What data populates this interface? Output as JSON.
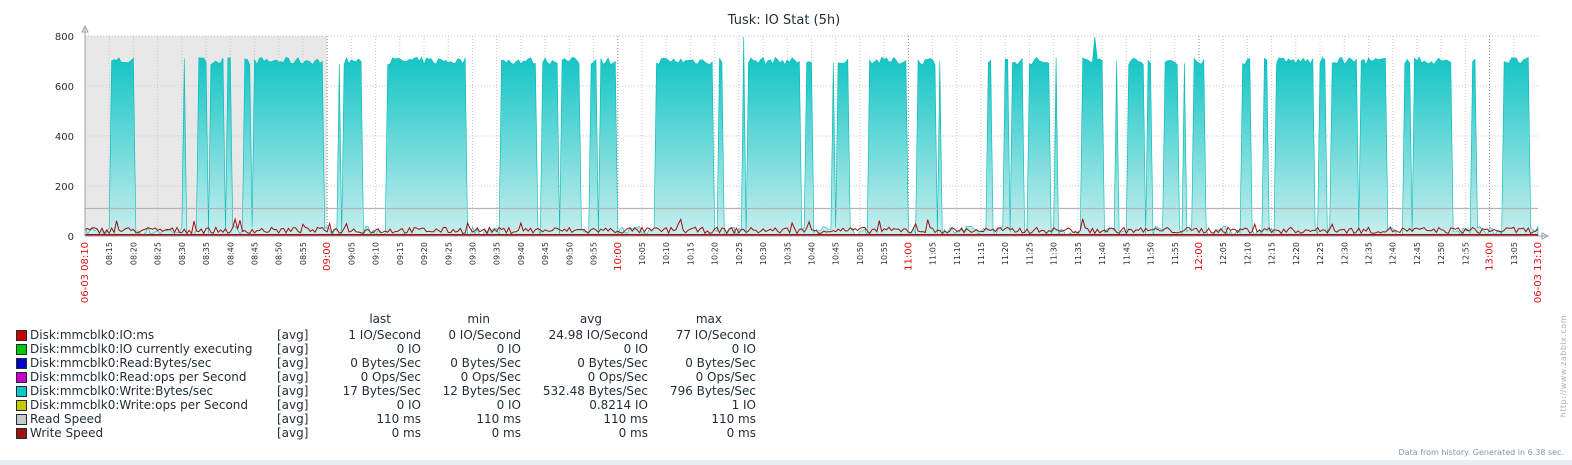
{
  "chart_data": {
    "type": "area",
    "title": "Tusk: IO Stat (5h)",
    "ylim": [
      0,
      800
    ],
    "yticks": [
      "0",
      "200",
      "400",
      "600",
      "800"
    ],
    "x_start_label": "06-03 08:10",
    "x_end_label": "06-03 13:10",
    "x_ticks": [
      "08:15",
      "08:20",
      "08:25",
      "08:30",
      "08:35",
      "08:40",
      "08:45",
      "08:50",
      "08:55",
      "09:00",
      "09:05",
      "09:10",
      "09:15",
      "09:20",
      "09:25",
      "09:30",
      "09:35",
      "09:40",
      "09:45",
      "09:50",
      "09:55",
      "10:00",
      "10:05",
      "10:10",
      "10:15",
      "10:20",
      "10:25",
      "10:30",
      "10:35",
      "10:40",
      "10:45",
      "10:50",
      "10:55",
      "11:00",
      "11:05",
      "11:10",
      "11:15",
      "11:20",
      "11:25",
      "11:30",
      "11:35",
      "11:40",
      "11:45",
      "11:50",
      "11:55",
      "12:00",
      "12:05",
      "12:10",
      "12:15",
      "12:20",
      "12:25",
      "12:30",
      "12:35",
      "12:40",
      "12:45",
      "12:50",
      "12:55",
      "13:00",
      "13:05"
    ],
    "x_major_ticks": [
      "09:00",
      "10:00",
      "11:00",
      "12:00",
      "13:00"
    ],
    "series": [
      {
        "name": "Disk:mmcblk0:Write:Bytes/sec",
        "color": "#00c0c0",
        "typical_high": 700,
        "min": 12,
        "avg": 532.48,
        "max": 796
      },
      {
        "name": "Read Speed",
        "color": "#c8c8c8",
        "value": 110
      },
      {
        "name": "Disk:mmcblk0:IO:ms",
        "color": "#c00000",
        "avg": 24.98,
        "max": 77
      }
    ],
    "grid": true
  },
  "legend": {
    "headers": {
      "last": "last",
      "min": "min",
      "avg": "avg",
      "max": "max"
    },
    "items": [
      {
        "name": "Disk:mmcblk0:IO:ms",
        "color": "#c80000",
        "func": "[avg]",
        "last": "1 IO/Second",
        "min": "0 IO/Second",
        "avg": "24.98 IO/Second",
        "max": "77 IO/Second"
      },
      {
        "name": "Disk:mmcblk0:IO currently executing",
        "color": "#00c800",
        "func": "[avg]",
        "last": "0 IO",
        "min": "0 IO",
        "avg": "0 IO",
        "max": "0 IO"
      },
      {
        "name": "Disk:mmcblk0:Read:Bytes/sec",
        "color": "#0000c8",
        "func": "[avg]",
        "last": "0 Bytes/Sec",
        "min": "0 Bytes/Sec",
        "avg": "0 Bytes/Sec",
        "max": "0 Bytes/Sec"
      },
      {
        "name": "Disk:mmcblk0:Read:ops per Second",
        "color": "#c800c8",
        "func": "[avg]",
        "last": "0 Ops/Sec",
        "min": "0 Ops/Sec",
        "avg": "0 Ops/Sec",
        "max": "0 Ops/Sec"
      },
      {
        "name": "Disk:mmcblk0:Write:Bytes/sec",
        "color": "#00c8c8",
        "func": "[avg]",
        "last": "17 Bytes/Sec",
        "min": "12 Bytes/Sec",
        "avg": "532.48 Bytes/Sec",
        "max": "796 Bytes/Sec"
      },
      {
        "name": "Disk:mmcblk0:Write:ops per Second",
        "color": "#c8c800",
        "func": "[avg]",
        "last": "0 IO",
        "min": "0 IO",
        "avg": "0.8214 IO",
        "max": "1 IO"
      },
      {
        "name": "Read Speed",
        "color": "#c8c8c8",
        "func": "[avg]",
        "last": "110 ms",
        "min": "110 ms",
        "avg": "110 ms",
        "max": "110 ms"
      },
      {
        "name": "Write Speed",
        "color": "#a01010",
        "func": "[avg]",
        "last": "0 ms",
        "min": "0 ms",
        "avg": "0 ms",
        "max": "0 ms"
      }
    ]
  },
  "footer_note": "Data from history. Generated in 6.38 sec.",
  "watermark": "http://www.zabbix.com"
}
